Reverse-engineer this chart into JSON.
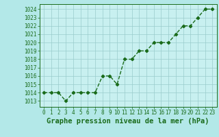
{
  "x": [
    0,
    1,
    2,
    3,
    4,
    5,
    6,
    7,
    8,
    9,
    10,
    11,
    12,
    13,
    14,
    15,
    16,
    17,
    18,
    19,
    20,
    21,
    22,
    23
  ],
  "y": [
    1014,
    1014,
    1014,
    1013,
    1014,
    1014,
    1014,
    1014,
    1016,
    1016,
    1015,
    1018,
    1018,
    1019,
    1019,
    1020,
    1020,
    1020,
    1021,
    1022,
    1022,
    1023,
    1024,
    1024
  ],
  "line_color": "#1a6b1a",
  "marker": "D",
  "marker_size": 2.2,
  "line_width": 1.0,
  "background_color": "#b3e8e8",
  "plot_bg_color": "#c8f0f0",
  "grid_color": "#99cccc",
  "xlabel": "Graphe pression niveau de la mer (hPa)",
  "xlabel_fontsize": 7.5,
  "xtick_fontsize": 5.5,
  "ytick_fontsize": 5.5,
  "ylim": [
    1012.3,
    1024.6
  ],
  "xlim": [
    -0.6,
    23.6
  ],
  "yticks": [
    1013,
    1014,
    1015,
    1016,
    1017,
    1018,
    1019,
    1020,
    1021,
    1022,
    1023,
    1024
  ],
  "xticks": [
    0,
    1,
    2,
    3,
    4,
    5,
    6,
    7,
    8,
    9,
    10,
    11,
    12,
    13,
    14,
    15,
    16,
    17,
    18,
    19,
    20,
    21,
    22,
    23
  ]
}
